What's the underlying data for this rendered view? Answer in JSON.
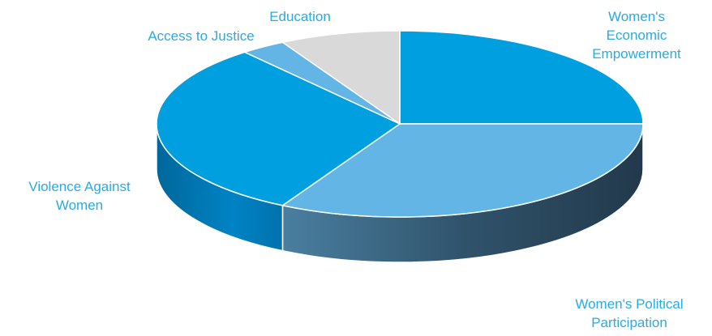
{
  "chart_data": {
    "type": "pie",
    "style": "3d",
    "title": "",
    "legend": "none",
    "slices": [
      {
        "name": "Women's Economic Empowerment",
        "label_lines": [
          "Women's",
          "Economic",
          "Empowerment"
        ],
        "value": 25,
        "color": "#009fdf"
      },
      {
        "name": "Women's Political Participation",
        "label_lines": [
          "Women's Political",
          "Participation"
        ],
        "value": 33,
        "color": "#62b5e5"
      },
      {
        "name": "Violence Against Women",
        "label_lines": [
          "Violence Against",
          "Women"
        ],
        "value": 31,
        "color": "#009fdf"
      },
      {
        "name": "Access to Justice",
        "label_lines": [
          "Access to Justice"
        ],
        "value": 3,
        "color": "#62b5e5"
      },
      {
        "name": "Education",
        "label_lines": [
          "Education"
        ],
        "value": 8,
        "color": "#d9d9d9"
      }
    ],
    "label_color": "#29abe2"
  }
}
